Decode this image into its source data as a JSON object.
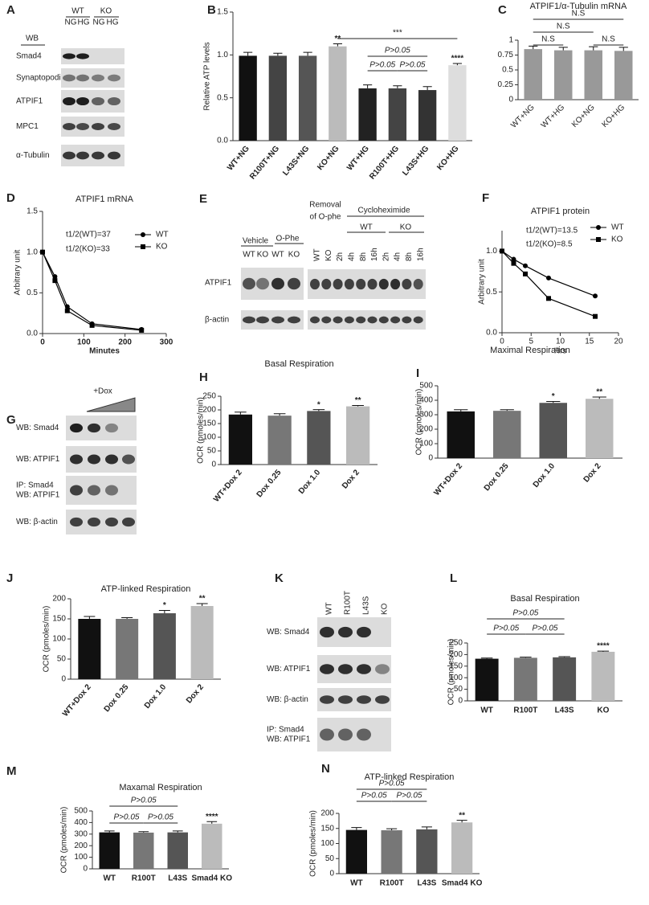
{
  "chart_data": [
    {
      "panel": "B",
      "type": "bar",
      "ylabel": "Relative ATP levels",
      "categories": [
        "WT+NG",
        "R100T+NG",
        "L43S+NG",
        "KO+NG",
        "WT+HG",
        "R100T+HG",
        "L43S+HG",
        "KO+HG"
      ],
      "values": [
        0.99,
        0.99,
        0.99,
        1.1,
        0.61,
        0.61,
        0.59,
        0.88
      ],
      "errors": [
        0.04,
        0.03,
        0.04,
        0.03,
        0.04,
        0.03,
        0.04,
        0.02
      ],
      "colors": [
        "#111111",
        "#444444",
        "#555555",
        "#bbbbbb",
        "#222222",
        "#444444",
        "#333333",
        "#dddddd"
      ],
      "ylim": [
        0,
        1.5
      ],
      "yticks": [
        {
          "value": 0,
          "label": "0.0"
        },
        {
          "value": 0.5,
          "label": "0.5"
        },
        {
          "value": 1,
          "label": "1.0"
        },
        {
          "value": 1.5,
          "label": "1.5"
        }
      ],
      "annotations": [
        "**",
        "****",
        "***",
        "P>0.05",
        "P>0.05",
        "P>0.05"
      ]
    },
    {
      "panel": "C",
      "type": "bar",
      "title": "ATPIF1/α-Tubulin mRNA",
      "categories": [
        "WT+NG",
        "WT+HG",
        "KO+NG",
        "KO+HG"
      ],
      "values": [
        0.85,
        0.83,
        0.83,
        0.82
      ],
      "errors": [
        0.05,
        0.05,
        0.06,
        0.06
      ],
      "colors": [
        "#999999",
        "#999999",
        "#999999",
        "#999999"
      ],
      "ylim": [
        0,
        1
      ],
      "yticks": [
        0,
        0.25,
        0.5,
        0.75,
        1
      ],
      "annotations": [
        "N.S",
        "N.S",
        "N.S",
        "N.S"
      ]
    },
    {
      "panel": "D",
      "type": "line",
      "title": "ATPIF1 mRNA",
      "xlabel": "Minutes",
      "ylabel": "Arbitrary unit",
      "x": [
        0,
        30,
        60,
        120,
        240
      ],
      "series": [
        {
          "name": "WT",
          "marker": "circle",
          "color": "#000000",
          "values": [
            1.0,
            0.7,
            0.33,
            0.12,
            0.05
          ]
        },
        {
          "name": "KO",
          "marker": "square",
          "color": "#000000",
          "values": [
            1.0,
            0.65,
            0.28,
            0.1,
            0.04
          ]
        }
      ],
      "xlim": [
        0,
        300
      ],
      "xticks": [
        0,
        100,
        200,
        300
      ],
      "ylim": [
        0,
        1.5
      ],
      "yticks": [
        {
          "value": 0,
          "label": "0.0"
        },
        {
          "value": 0.5,
          "label": "0.5"
        },
        {
          "value": 1,
          "label": "1.0"
        },
        {
          "value": 1.5,
          "label": "1.5"
        }
      ],
      "annotations": [
        "t1/2(WT)=37",
        "t1/2(KO)=33"
      ]
    },
    {
      "panel": "F",
      "type": "line",
      "title": "ATPIF1 protein",
      "xlabel": "Hrs",
      "ylabel": "Arbitrary unit",
      "x": [
        0,
        2,
        4,
        8,
        16
      ],
      "series": [
        {
          "name": "WT",
          "marker": "circle",
          "color": "#000000",
          "values": [
            1.0,
            0.9,
            0.82,
            0.67,
            0.45
          ]
        },
        {
          "name": "KO",
          "marker": "square",
          "color": "#000000",
          "values": [
            1.0,
            0.85,
            0.72,
            0.42,
            0.2
          ]
        }
      ],
      "xlim": [
        0,
        20
      ],
      "xticks": [
        0,
        5,
        10,
        15,
        20
      ],
      "ylim": [
        0,
        1.25
      ],
      "yticks": [
        {
          "value": 0,
          "label": "0.0"
        },
        {
          "value": 0.5,
          "label": "0.5"
        },
        {
          "value": 1,
          "label": "1.0"
        }
      ],
      "annotations": [
        "t1/2(WT)=13.5",
        "t1/2(KO)=8.5"
      ]
    },
    {
      "panel": "H",
      "type": "bar",
      "title": "Basal Respiration",
      "ylabel": "OCR (pmoles/min)",
      "categories": [
        "WT+Dox 2",
        "Dox 0.25",
        "Dox 1.0",
        "Dox 2"
      ],
      "values": [
        183,
        179,
        196,
        213
      ],
      "errors": [
        9,
        7,
        5,
        3
      ],
      "colors": [
        "#111111",
        "#777777",
        "#555555",
        "#bbbbbb"
      ],
      "ylim": [
        0,
        250
      ],
      "yticks": [
        0,
        50,
        100,
        150,
        200,
        250
      ],
      "annotations": [
        "*",
        "**"
      ]
    },
    {
      "panel": "I",
      "type": "bar",
      "title": "Maximal Respiration",
      "ylabel": "OCR (pmoles/min)",
      "categories": [
        "WT+Dox 2",
        "Dox 0.25",
        "Dox 1.0",
        "Dox 2"
      ],
      "values": [
        323,
        327,
        382,
        410
      ],
      "errors": [
        12,
        8,
        10,
        12
      ],
      "colors": [
        "#111111",
        "#777777",
        "#555555",
        "#bbbbbb"
      ],
      "ylim": [
        0,
        500
      ],
      "yticks": [
        0,
        100,
        200,
        300,
        400,
        500
      ],
      "annotations": [
        "*",
        "**"
      ]
    },
    {
      "panel": "J",
      "type": "bar",
      "title": "ATP-linked Respiration",
      "ylabel": "OCR (pmoles/min)",
      "categories": [
        "WT+Dox 2",
        "Dox 0.25",
        "Dox 1.0",
        "Dox 2"
      ],
      "values": [
        150,
        150,
        164,
        182
      ],
      "errors": [
        6,
        3,
        7,
        6
      ],
      "colors": [
        "#111111",
        "#777777",
        "#555555",
        "#bbbbbb"
      ],
      "ylim": [
        0,
        200
      ],
      "yticks": [
        0,
        50,
        100,
        150,
        200
      ],
      "annotations": [
        "*",
        "**"
      ]
    },
    {
      "panel": "L",
      "type": "bar",
      "title": "Basal Respiration",
      "ylabel": "OCR (pmoles/min)",
      "categories": [
        "WT",
        "R100T",
        "L43S",
        "KO"
      ],
      "values": [
        182,
        186,
        188,
        212
      ],
      "errors": [
        3,
        3,
        3,
        3
      ],
      "colors": [
        "#111111",
        "#777777",
        "#555555",
        "#bbbbbb"
      ],
      "ylim": [
        0,
        250
      ],
      "yticks": [
        0,
        50,
        100,
        150,
        200,
        250
      ],
      "annotations": [
        "P>0.05",
        "P>0.05",
        "P>0.05",
        "****"
      ]
    },
    {
      "panel": "M",
      "type": "bar",
      "title": "Maxamal Respiration",
      "ylabel": "OCR (pmoles/min)",
      "categories": [
        "WT",
        "R100T",
        "L43S",
        "Smad4 KO"
      ],
      "values": [
        315,
        313,
        315,
        390
      ],
      "errors": [
        12,
        8,
        12,
        18
      ],
      "colors": [
        "#111111",
        "#777777",
        "#555555",
        "#bbbbbb"
      ],
      "ylim": [
        0,
        500
      ],
      "yticks": [
        0,
        100,
        200,
        300,
        400,
        500
      ],
      "annotations": [
        "P>0.05",
        "P>0.05",
        "P>0.05",
        "****"
      ]
    },
    {
      "panel": "N",
      "type": "bar",
      "title": "ATP-linked Respiration",
      "ylabel": "OCR (pmoles/min)",
      "categories": [
        "WT",
        "R100T",
        "L43S",
        "Smad4 KO"
      ],
      "values": [
        145,
        144,
        147,
        170
      ],
      "errors": [
        8,
        5,
        8,
        7
      ],
      "colors": [
        "#111111",
        "#777777",
        "#555555",
        "#bbbbbb"
      ],
      "ylim": [
        0,
        200
      ],
      "yticks": [
        0,
        50,
        100,
        150,
        200
      ],
      "annotations": [
        "P>0.05",
        "P>0.05",
        "P>0.05",
        "**"
      ]
    }
  ],
  "blots": [
    {
      "panel": "A",
      "header": [
        "WB",
        "WT",
        "KO",
        "NG",
        "HG",
        "NG",
        "HG"
      ],
      "rows": [
        [
          "Smad4"
        ],
        [
          "Synaptopodin"
        ],
        [
          "ATPIF1"
        ],
        [
          "MPC1"
        ],
        [
          "α-Tubulin"
        ]
      ]
    },
    {
      "panel": "E",
      "groups": [
        "Vehicle",
        "O-Phe",
        "Removal",
        "of O-phe",
        "Cycloheximide",
        "WT",
        "KO"
      ],
      "lanes": [
        "WT",
        "KO",
        "WT",
        "KO",
        "WT",
        "KO",
        "2h",
        "4h",
        "8h",
        "16h",
        "2h",
        "4h",
        "8h",
        "16h"
      ],
      "rows": [
        [
          "ATPIF1"
        ],
        [
          "β-actin"
        ]
      ]
    },
    {
      "panel": "G",
      "treatment": "+Dox",
      "rows": [
        [
          "WB: Smad4"
        ],
        [
          "WB: ATPIF1"
        ],
        [
          "IP:  Smad4",
          "WB: ATPIF1"
        ],
        [
          "WB: β-actin"
        ]
      ]
    },
    {
      "panel": "K",
      "lanes": [
        "WT",
        "R100T",
        "L43S",
        "KO"
      ],
      "rows": [
        [
          "WB: Smad4"
        ],
        [
          "WB: ATPIF1"
        ],
        [
          "WB: β-actin"
        ],
        [
          "IP:  Smad4",
          "WB: ATPIF1"
        ]
      ]
    }
  ]
}
